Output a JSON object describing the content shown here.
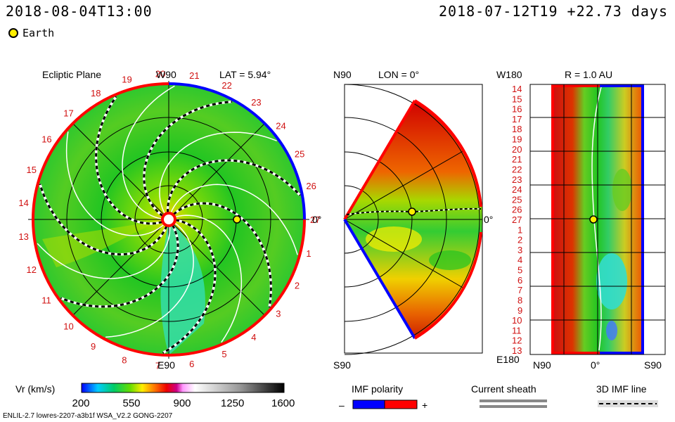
{
  "header": {
    "datetime": "2018-08-04T13:00",
    "reference": "2018-07-12T19 +22.73 days",
    "earth_label": "Earth"
  },
  "colors": {
    "earth": "#ffee00",
    "imf_negative": "#0000ff",
    "imf_positive": "#ff0000",
    "boundary_red": "#ff0000",
    "boundary_blue": "#0000ff"
  },
  "chart_data": [
    {
      "type": "heatmap",
      "panel": "ecliptic",
      "title": "Ecliptic Plane",
      "lat_label": "LAT = 5.94°",
      "top_label": "W90",
      "bottom_label": "E90",
      "right_label": "0°",
      "carrington_ticks": [
        "1",
        "2",
        "3",
        "4",
        "5",
        "6",
        "7",
        "8",
        "9",
        "10",
        "11",
        "12",
        "13",
        "14",
        "15",
        "16",
        "17",
        "18",
        "19",
        "20",
        "21",
        "22",
        "23",
        "24",
        "25",
        "26",
        "27"
      ],
      "earth_position": {
        "lon_deg": 0,
        "r_au": 1.0
      }
    },
    {
      "type": "heatmap",
      "panel": "meridional",
      "title": "N90",
      "lon_label": "LON = 0°",
      "bottom_label": "S90",
      "right_label": "0°",
      "lat_range_deg": [
        -60,
        60
      ],
      "earth_position": {
        "lat_deg": 5.94,
        "r_au": 1.0
      }
    },
    {
      "type": "heatmap",
      "panel": "radial-surface",
      "title": "R = 1.0 AU",
      "top_label": "W180",
      "bottom_label": "E180",
      "x_labels": [
        "N90",
        "0°",
        "S90"
      ],
      "y_ticks": [
        "14",
        "15",
        "16",
        "17",
        "18",
        "19",
        "20",
        "21",
        "22",
        "23",
        "24",
        "25",
        "26",
        "27",
        "1",
        "2",
        "3",
        "4",
        "5",
        "6",
        "7",
        "8",
        "9",
        "10",
        "11",
        "12",
        "13"
      ]
    },
    {
      "type": "colorbar",
      "label": "Vr (km/s)",
      "ticks": [
        "200",
        "550",
        "900",
        "1250",
        "1600"
      ],
      "range": [
        200,
        1600
      ]
    }
  ],
  "legend": {
    "imf_title": "IMF polarity",
    "imf_minus": "–",
    "imf_plus": "+",
    "sheath_title": "Current sheath",
    "imf3d_title": "3D IMF line"
  },
  "footer": "ENLIL-2.7 lowres-2207-a3b1f WSA_V2.2 GONG-2207"
}
